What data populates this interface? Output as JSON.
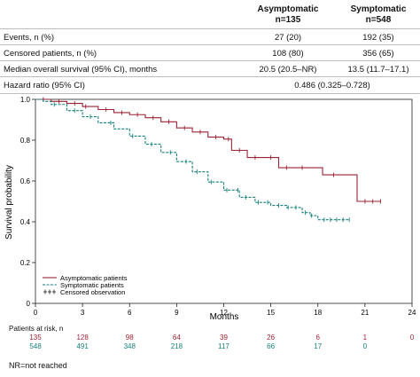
{
  "table": {
    "columns": [
      {
        "name": "Asymptomatic",
        "n": "n=135"
      },
      {
        "name": "Symptomatic",
        "n": "n=548"
      }
    ],
    "rows": [
      {
        "label": "Events, n (%)",
        "values": [
          "27 (20)",
          "192 (35)"
        ]
      },
      {
        "label": "Censored patients, n (%)",
        "values": [
          "108 (80)",
          "356 (65)"
        ]
      },
      {
        "label": "Median overall survival (95% CI), months",
        "values": [
          "20.5 (20.5–NR)",
          "13.5 (11.7–17.1)"
        ]
      }
    ],
    "hazard_ratio": {
      "label": "Hazard ratio (95% CI)",
      "value": "0.486 (0.325–0.728)"
    }
  },
  "chart_data": {
    "type": "line",
    "xlabel": "Months",
    "ylabel": "Survival probability",
    "xlim": [
      0,
      24
    ],
    "ylim": [
      0,
      1.0
    ],
    "xticks": [
      0,
      3,
      6,
      9,
      12,
      15,
      18,
      21,
      24
    ],
    "yticks": [
      0,
      0.2,
      0.4,
      0.6,
      0.8,
      1.0
    ],
    "ytick_labels": [
      "0",
      "0.2",
      "0.4",
      "0.6",
      "0.8",
      "1.0"
    ],
    "legend_position": "bottom-left",
    "series": [
      {
        "name": "Asymptomatic patients",
        "color": "#9b2335",
        "style": "solid",
        "x": [
          0,
          1.0,
          2.0,
          3.0,
          4.0,
          5.0,
          6.0,
          7.0,
          8.0,
          9.0,
          10.0,
          11.0,
          12.0,
          12.5,
          13.5,
          15.5,
          18.3,
          20.5,
          22.0
        ],
        "y": [
          1.0,
          0.99,
          0.98,
          0.965,
          0.95,
          0.935,
          0.925,
          0.91,
          0.89,
          0.86,
          0.84,
          0.815,
          0.805,
          0.75,
          0.715,
          0.665,
          0.63,
          0.5,
          0.5
        ],
        "censored_x": [
          0.5,
          1.5,
          2.5,
          3.2,
          4.5,
          5.5,
          6.5,
          7.5,
          8.5,
          9.5,
          10.5,
          11.5,
          12.3,
          13.0,
          14.0,
          15.0,
          16.0,
          17.0,
          19.0,
          21.0,
          21.5,
          22.0
        ]
      },
      {
        "name": "Symptomatic patients",
        "color": "#17807e",
        "style": "dashed",
        "x": [
          0,
          0.5,
          1.0,
          2.0,
          3.0,
          4.0,
          5.0,
          6.0,
          7.0,
          8.0,
          9.0,
          10.0,
          11.0,
          12.0,
          13.0,
          14.0,
          15.0,
          16.0,
          17.0,
          17.5,
          18.0,
          19.0,
          20.0
        ],
        "y": [
          1.0,
          0.99,
          0.975,
          0.945,
          0.915,
          0.885,
          0.855,
          0.82,
          0.78,
          0.74,
          0.695,
          0.645,
          0.595,
          0.555,
          0.52,
          0.495,
          0.48,
          0.47,
          0.445,
          0.43,
          0.41,
          0.41,
          0.41
        ],
        "censored_x": [
          1.2,
          2.5,
          3.5,
          4.8,
          6.2,
          7.4,
          8.6,
          9.6,
          10.3,
          11.2,
          12.2,
          12.9,
          13.4,
          14.2,
          14.8,
          15.5,
          16.1,
          16.6,
          17.2,
          17.6,
          18.4,
          18.8,
          19.2,
          19.6,
          20.0
        ]
      }
    ],
    "censor_legend": "Censored observation"
  },
  "at_risk": {
    "title": "Patients at risk, n",
    "rows": [
      {
        "color": "#9b2335",
        "values": [
          "135",
          "128",
          "98",
          "64",
          "39",
          "26",
          "6",
          "1",
          "0"
        ]
      },
      {
        "color": "#17807e",
        "values": [
          "548",
          "491",
          "348",
          "218",
          "117",
          "66",
          "17",
          "0",
          ""
        ]
      }
    ]
  },
  "footnote": "NR=not reached"
}
